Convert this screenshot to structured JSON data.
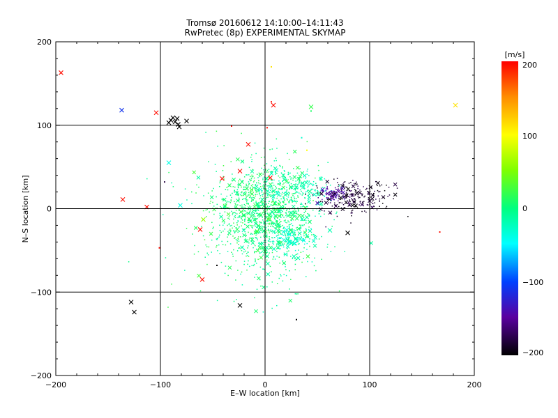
{
  "chart_data": {
    "type": "scatter",
    "title": "Tromsø 20160612 14:10:00–14:11:43",
    "subtitle": "RwPretec (8p) EXPERIMENTAL SKYMAP",
    "xlabel": "E–W location [km]",
    "ylabel": "N–S location [km]",
    "xlim": [
      -200,
      200
    ],
    "ylim": [
      -200,
      200
    ],
    "xticks": [
      "−200",
      "−100",
      "0",
      "100",
      "200"
    ],
    "yticks": [
      "−200",
      "−100",
      "0",
      "100",
      "200"
    ],
    "grid": true,
    "colorbar": {
      "label": "[m/s]",
      "range": [
        -200,
        200
      ],
      "ticks": [
        "200",
        "100",
        "0",
        "−100",
        "−200"
      ]
    },
    "cross_markers": [
      {
        "x": -195,
        "y": 163,
        "v": 195
      },
      {
        "x": -137,
        "y": 118,
        "v": -110
      },
      {
        "x": -104,
        "y": 115,
        "v": 195
      },
      {
        "x": -92,
        "y": 103,
        "v": -200
      },
      {
        "x": -90,
        "y": 106,
        "v": -200
      },
      {
        "x": -88,
        "y": 109,
        "v": -200
      },
      {
        "x": -86,
        "y": 104,
        "v": -200
      },
      {
        "x": -84,
        "y": 108,
        "v": -200
      },
      {
        "x": -83,
        "y": 101,
        "v": -200
      },
      {
        "x": -82,
        "y": 98,
        "v": -200
      },
      {
        "x": -75,
        "y": 105,
        "v": -200
      },
      {
        "x": 8,
        "y": 124,
        "v": 195
      },
      {
        "x": 44,
        "y": 122,
        "v": 20
      },
      {
        "x": 182,
        "y": 124,
        "v": 110
      },
      {
        "x": -16,
        "y": 77,
        "v": 195
      },
      {
        "x": -92,
        "y": 55,
        "v": -40
      },
      {
        "x": -41,
        "y": 36,
        "v": 195
      },
      {
        "x": -24,
        "y": 45,
        "v": 195
      },
      {
        "x": -136,
        "y": 11,
        "v": 195
      },
      {
        "x": -113,
        "y": 2,
        "v": 195
      },
      {
        "x": -81,
        "y": 4,
        "v": -40
      },
      {
        "x": -59,
        "y": -13,
        "v": 60
      },
      {
        "x": -62,
        "y": -25,
        "v": 195
      },
      {
        "x": -60,
        "y": -85,
        "v": 195
      },
      {
        "x": 79,
        "y": -29,
        "v": -200
      },
      {
        "x": -128,
        "y": -112,
        "v": -200
      },
      {
        "x": -125,
        "y": -124,
        "v": -200
      },
      {
        "x": -24,
        "y": -116,
        "v": -200
      },
      {
        "x": 5,
        "y": 37,
        "v": 195
      },
      {
        "x": 62,
        "y": -26,
        "v": -20
      }
    ],
    "dot_markers": [
      {
        "x": 6,
        "y": 170,
        "v": 110
      },
      {
        "x": 6,
        "y": 128,
        "v": 195
      },
      {
        "x": 2,
        "y": 97,
        "v": 195
      },
      {
        "x": -32,
        "y": 99,
        "v": 195
      },
      {
        "x": -96,
        "y": 32,
        "v": -180
      },
      {
        "x": -101,
        "y": -47,
        "v": 195
      },
      {
        "x": 167,
        "y": -28,
        "v": 195
      },
      {
        "x": -46,
        "y": -68,
        "v": -200
      },
      {
        "x": 30,
        "y": -133,
        "v": -200
      },
      {
        "x": 44,
        "y": 117,
        "v": 10
      },
      {
        "x": 40,
        "y": 70,
        "v": 100
      },
      {
        "x": 35,
        "y": 85,
        "v": -30
      }
    ],
    "scatter_clusters": [
      {
        "name": "",
        "cx": 0,
        "cy": 0,
        "sx": 22,
        "sy": 26,
        "n": 900,
        "vmin": -15,
        "vmax": 25,
        "seed": 11
      },
      {
        "name": "",
        "cx": 10,
        "cy": -35,
        "sx": 24,
        "sy": 30,
        "n": 260,
        "vmin": -30,
        "vmax": 10,
        "seed": 23
      },
      {
        "name": "",
        "cx": 30,
        "cy": 25,
        "sx": 18,
        "sy": 10,
        "n": 180,
        "vmin": -35,
        "vmax": -5,
        "seed": 37
      },
      {
        "name": "",
        "cx": 25,
        "cy": -35,
        "sx": 10,
        "sy": 7,
        "n": 120,
        "vmin": -45,
        "vmax": -15,
        "seed": 41
      },
      {
        "name": "",
        "cx": -25,
        "cy": -20,
        "sx": 35,
        "sy": 45,
        "n": 220,
        "vmin": -20,
        "vmax": 30,
        "seed": 53
      },
      {
        "name": "",
        "cx": 82,
        "cy": 12,
        "sx": 16,
        "sy": 10,
        "n": 230,
        "vmin": -200,
        "vmax": -170,
        "seed": 67
      },
      {
        "name": "",
        "cx": 65,
        "cy": 17,
        "sx": 7,
        "sy": 5,
        "n": 70,
        "vmin": -165,
        "vmax": -130,
        "seed": 71
      }
    ]
  }
}
